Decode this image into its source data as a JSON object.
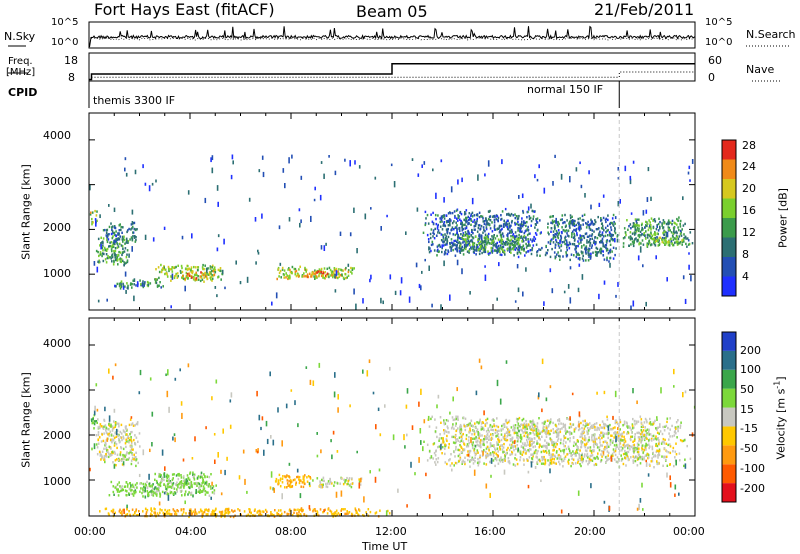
{
  "header": {
    "site": "Fort Hays East (fitACF)",
    "beam": "Beam 05",
    "date": "21/Feb/2011"
  },
  "summary_panels": {
    "nsky_label": "N.Sky",
    "nsky_ticks": [
      "10^5",
      "10^0"
    ],
    "nsearch_label": "N.Search",
    "nsearch_ticks": [
      "10^5",
      "10^0"
    ],
    "freq_label_1": "Freq.",
    "freq_label_2": "[MHz]",
    "freq_ticks": [
      "18",
      "8"
    ],
    "nave_label": "Nave",
    "nave_ticks": [
      "60",
      "0"
    ],
    "cpid_label": "CPID",
    "cpid_segments": [
      {
        "label": "themis 3300 IF",
        "start_hour": 0,
        "end_hour": 21
      },
      {
        "label": "normal 150 IF",
        "start_hour": 21,
        "end_hour": 24
      }
    ],
    "freq_steps": [
      {
        "start_hour": 0.0,
        "end_hour": 0.1,
        "mhz": 8.2
      },
      {
        "start_hour": 0.1,
        "end_hour": 12.0,
        "mhz": 10.5
      },
      {
        "start_hour": 12.0,
        "end_hour": 24.0,
        "mhz": 14.8
      }
    ],
    "nave_steps": [
      {
        "start_hour": 0.1,
        "end_hour": 21.0,
        "value": 7
      },
      {
        "start_hour": 21.0,
        "end_hour": 24.0,
        "value": 20
      }
    ]
  },
  "chart_data": [
    {
      "type": "heatmap",
      "parameter": "power",
      "ylabel": "Slant Range [km]",
      "ylim": [
        200,
        4600
      ],
      "yticks": [
        "4000",
        "3000",
        "2000",
        "1000"
      ],
      "colorbar_label": "Power [dB]",
      "colorbar_ticks": [
        "28",
        "24",
        "20",
        "16",
        "12",
        "8",
        "4"
      ],
      "colorbar_range": [
        0,
        32
      ],
      "colors": [
        "#1f30ff",
        "#234fb4",
        "#2c6f73",
        "#3b9b4b",
        "#7acf2e",
        "#d6c81f",
        "#f08a18",
        "#e3281c"
      ],
      "echo_regions": [
        {
          "t0": 0.0,
          "t1": 0.3,
          "r0": 2100,
          "r1": 2450,
          "level": 20
        },
        {
          "t0": 0.2,
          "t1": 1.6,
          "r0": 1200,
          "r1": 1900,
          "level": 14
        },
        {
          "t0": 0.5,
          "t1": 2.0,
          "r0": 1700,
          "r1": 2200,
          "level": 9
        },
        {
          "t0": 0.9,
          "t1": 3.0,
          "r0": 700,
          "r1": 900,
          "level": 12
        },
        {
          "t0": 2.5,
          "t1": 5.4,
          "r0": 850,
          "r1": 1250,
          "level": 18
        },
        {
          "t0": 3.6,
          "t1": 5.0,
          "r0": 900,
          "r1": 1100,
          "level": 23
        },
        {
          "t0": 7.2,
          "t1": 10.8,
          "r0": 900,
          "r1": 1200,
          "level": 20
        },
        {
          "t0": 8.0,
          "t1": 9.8,
          "r0": 950,
          "r1": 1100,
          "level": 24
        },
        {
          "t0": 13.2,
          "t1": 18.0,
          "r0": 1400,
          "r1": 2500,
          "level": 8
        },
        {
          "t0": 14.5,
          "t1": 17.5,
          "r0": 1500,
          "r1": 1900,
          "level": 14
        },
        {
          "t0": 18.0,
          "t1": 21.0,
          "r0": 1300,
          "r1": 2400,
          "level": 9
        },
        {
          "t0": 21.0,
          "t1": 23.9,
          "r0": 1600,
          "r1": 2300,
          "level": 13
        },
        {
          "t0": 22.0,
          "t1": 23.6,
          "r0": 1650,
          "r1": 1850,
          "level": 18
        }
      ]
    },
    {
      "type": "heatmap",
      "parameter": "velocity",
      "ylabel": "Slant Range [km]",
      "ylim": [
        200,
        4600
      ],
      "yticks": [
        "4000",
        "3000",
        "2000",
        "1000"
      ],
      "xlabel": "Time UT",
      "xticks": [
        "00:00",
        "04:00",
        "08:00",
        "12:00",
        "16:00",
        "20:00",
        "00:00"
      ],
      "xlim_hours": [
        0,
        24
      ],
      "colorbar_label": "Velocity [m s^-1]",
      "colorbar_ticks": [
        "200",
        "100",
        "50",
        "15",
        "-15",
        "-50",
        "-100",
        "-200"
      ],
      "colorbar_range": [
        -250,
        250
      ],
      "colors": [
        "#e3101c",
        "#ff5a00",
        "#ff9a10",
        "#ffc800",
        "#c8c8c0",
        "#7cd83a",
        "#3aa64a",
        "#2a6f8a",
        "#2040c8"
      ],
      "echo_regions": [
        {
          "t0": 0.0,
          "t1": 0.3,
          "r0": 2150,
          "r1": 2500,
          "vel": 60
        },
        {
          "t0": 0.2,
          "t1": 2.0,
          "r0": 1300,
          "r1": 2400,
          "vel": 0
        },
        {
          "t0": 0.6,
          "t1": 5.2,
          "r0": 650,
          "r1": 1000,
          "vel": 30
        },
        {
          "t0": 2.5,
          "t1": 5.0,
          "r0": 850,
          "r1": 1200,
          "vel": 30
        },
        {
          "t0": 7.2,
          "t1": 8.8,
          "r0": 850,
          "r1": 1150,
          "vel": -40
        },
        {
          "t0": 8.8,
          "t1": 10.8,
          "r0": 850,
          "r1": 1100,
          "vel": 0
        },
        {
          "t0": 13.2,
          "t1": 23.9,
          "r0": 1300,
          "r1": 2450,
          "vel": 0
        },
        {
          "t0": 0.0,
          "t1": 12.0,
          "r0": 200,
          "r1": 400,
          "vel": -40
        }
      ]
    }
  ]
}
